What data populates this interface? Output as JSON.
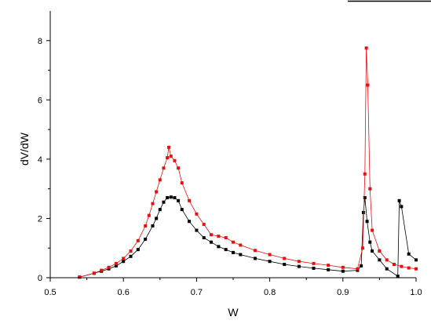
{
  "chart_data": {
    "type": "scatter",
    "title": "",
    "xlabel": "W",
    "ylabel": "dV/dW",
    "xlim": [
      0.5,
      1.0
    ],
    "ylim": [
      0,
      9
    ],
    "xticks": [
      "0.5",
      "0.6",
      "0.7",
      "0.8",
      "0.9",
      "1.0"
    ],
    "yticks": [
      "0",
      "2",
      "4",
      "6",
      "8"
    ],
    "grid": false,
    "legend": "none",
    "series": [
      {
        "color": "#000000",
        "marker": "square",
        "line": true,
        "points": [
          [
            0.54,
            0.02
          ],
          [
            0.56,
            0.15
          ],
          [
            0.57,
            0.22
          ],
          [
            0.58,
            0.3
          ],
          [
            0.59,
            0.4
          ],
          [
            0.6,
            0.55
          ],
          [
            0.61,
            0.72
          ],
          [
            0.62,
            0.95
          ],
          [
            0.63,
            1.3
          ],
          [
            0.64,
            1.75
          ],
          [
            0.645,
            2.0
          ],
          [
            0.65,
            2.3
          ],
          [
            0.655,
            2.55
          ],
          [
            0.66,
            2.7
          ],
          [
            0.665,
            2.72
          ],
          [
            0.67,
            2.7
          ],
          [
            0.675,
            2.6
          ],
          [
            0.68,
            2.3
          ],
          [
            0.69,
            1.9
          ],
          [
            0.7,
            1.6
          ],
          [
            0.71,
            1.35
          ],
          [
            0.72,
            1.2
          ],
          [
            0.73,
            1.05
          ],
          [
            0.74,
            0.95
          ],
          [
            0.75,
            0.85
          ],
          [
            0.76,
            0.78
          ],
          [
            0.78,
            0.65
          ],
          [
            0.8,
            0.55
          ],
          [
            0.82,
            0.45
          ],
          [
            0.84,
            0.38
          ],
          [
            0.86,
            0.32
          ],
          [
            0.88,
            0.27
          ],
          [
            0.9,
            0.22
          ],
          [
            0.92,
            0.25
          ],
          [
            0.925,
            0.4
          ],
          [
            0.928,
            2.2
          ],
          [
            0.93,
            2.7
          ],
          [
            0.933,
            1.9
          ],
          [
            0.937,
            1.2
          ],
          [
            0.94,
            0.9
          ],
          [
            0.95,
            0.6
          ],
          [
            0.96,
            0.3
          ],
          [
            0.975,
            0.05
          ],
          [
            0.977,
            2.6
          ],
          [
            0.98,
            2.4
          ],
          [
            0.99,
            0.8
          ],
          [
            1.0,
            0.6
          ]
        ]
      },
      {
        "color": "#e81010",
        "marker": "square",
        "line": true,
        "points": [
          [
            0.54,
            0.02
          ],
          [
            0.56,
            0.15
          ],
          [
            0.57,
            0.25
          ],
          [
            0.58,
            0.35
          ],
          [
            0.59,
            0.48
          ],
          [
            0.6,
            0.65
          ],
          [
            0.61,
            0.9
          ],
          [
            0.62,
            1.25
          ],
          [
            0.63,
            1.75
          ],
          [
            0.635,
            2.1
          ],
          [
            0.64,
            2.5
          ],
          [
            0.645,
            2.9
          ],
          [
            0.65,
            3.3
          ],
          [
            0.655,
            3.7
          ],
          [
            0.66,
            4.05
          ],
          [
            0.662,
            4.4
          ],
          [
            0.665,
            4.1
          ],
          [
            0.67,
            3.95
          ],
          [
            0.675,
            3.7
          ],
          [
            0.68,
            3.2
          ],
          [
            0.69,
            2.6
          ],
          [
            0.7,
            2.15
          ],
          [
            0.71,
            1.8
          ],
          [
            0.72,
            1.45
          ],
          [
            0.73,
            1.4
          ],
          [
            0.74,
            1.35
          ],
          [
            0.75,
            1.2
          ],
          [
            0.76,
            1.1
          ],
          [
            0.78,
            0.92
          ],
          [
            0.8,
            0.78
          ],
          [
            0.82,
            0.65
          ],
          [
            0.84,
            0.55
          ],
          [
            0.86,
            0.48
          ],
          [
            0.88,
            0.42
          ],
          [
            0.9,
            0.35
          ],
          [
            0.92,
            0.3
          ],
          [
            0.927,
            1.0
          ],
          [
            0.93,
            3.5
          ],
          [
            0.932,
            7.75
          ],
          [
            0.934,
            6.5
          ],
          [
            0.937,
            3.0
          ],
          [
            0.94,
            1.6
          ],
          [
            0.95,
            0.9
          ],
          [
            0.96,
            0.6
          ],
          [
            0.97,
            0.45
          ],
          [
            0.98,
            0.38
          ],
          [
            0.99,
            0.33
          ],
          [
            1.0,
            0.3
          ]
        ]
      }
    ]
  }
}
